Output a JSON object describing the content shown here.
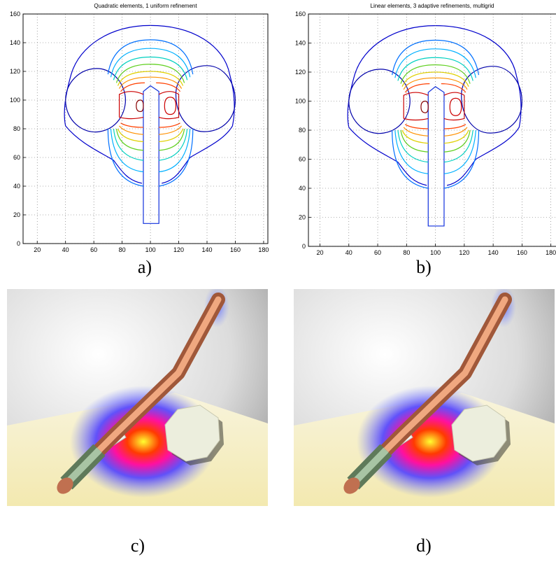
{
  "chart_data": [
    {
      "type": "contour",
      "title": "Quadratic elements, 1 uniform refinement",
      "xlim": [
        10,
        183
      ],
      "ylim": [
        0,
        160
      ],
      "xticks": [
        20,
        40,
        60,
        80,
        100,
        120,
        140,
        160,
        180
      ],
      "yticks": [
        0,
        20,
        40,
        60,
        80,
        100,
        120,
        140,
        160
      ],
      "grid": true
    },
    {
      "type": "contour",
      "title": "Linear elements, 3 adaptive refinements, multigrid",
      "xlim": [
        12,
        185
      ],
      "ylim": [
        0,
        160
      ],
      "xticks": [
        20,
        40,
        60,
        80,
        100,
        120,
        140,
        160,
        180
      ],
      "yticks": [
        0,
        20,
        40,
        60,
        80,
        100,
        120,
        140,
        160
      ],
      "grid": true
    }
  ],
  "captions": [
    "a)",
    "b)",
    "c)",
    "d)"
  ]
}
